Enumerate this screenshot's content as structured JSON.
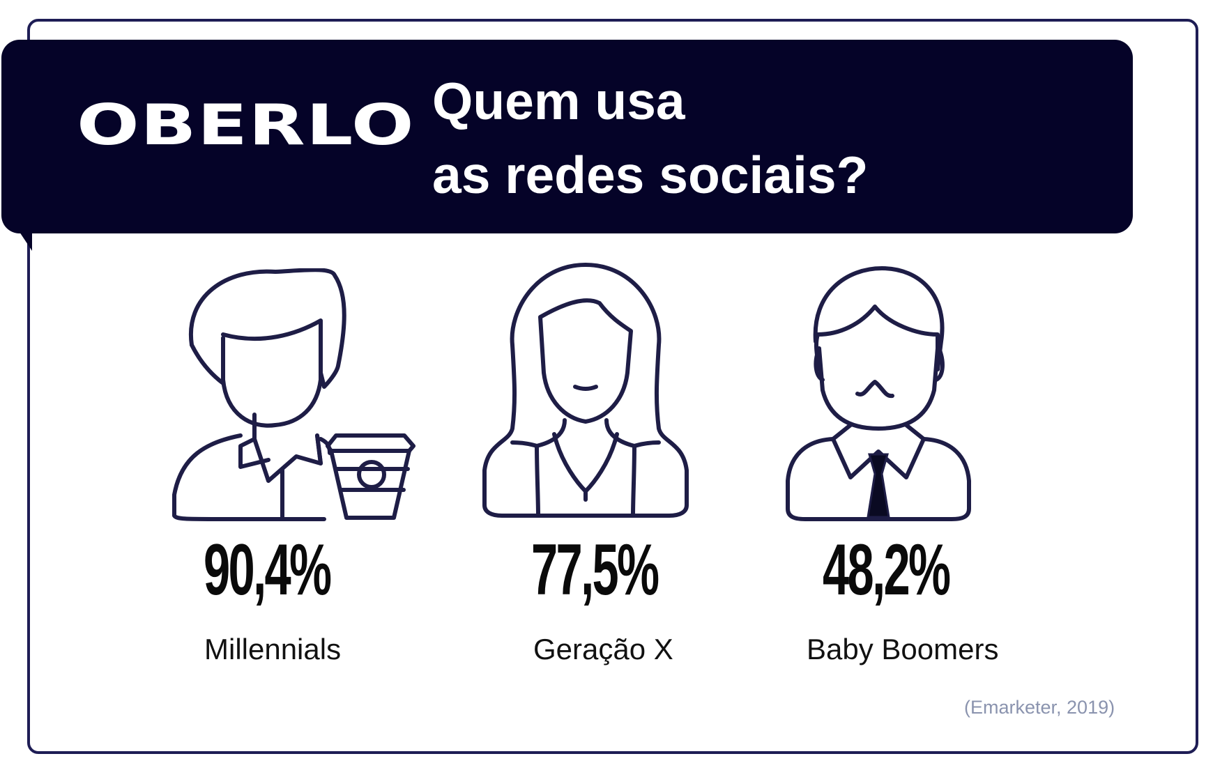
{
  "brand": {
    "logo_text": "OBERLO"
  },
  "header": {
    "title_line1": "Quem usa",
    "title_line2": "as redes sociais?"
  },
  "groups": [
    {
      "percent": "90,4%",
      "label": "Millennials",
      "icon": "young-man-with-coffee-icon"
    },
    {
      "percent": "77,5%",
      "label": "Geração X",
      "icon": "woman-icon"
    },
    {
      "percent": "48,2%",
      "label": "Baby Boomers",
      "icon": "man-with-tie-icon"
    }
  ],
  "source": "(Emarketer, 2019)",
  "colors": {
    "banner": "#050328",
    "border": "#1e1d55",
    "text": "#0a0a0a",
    "source": "#8a93ae"
  }
}
